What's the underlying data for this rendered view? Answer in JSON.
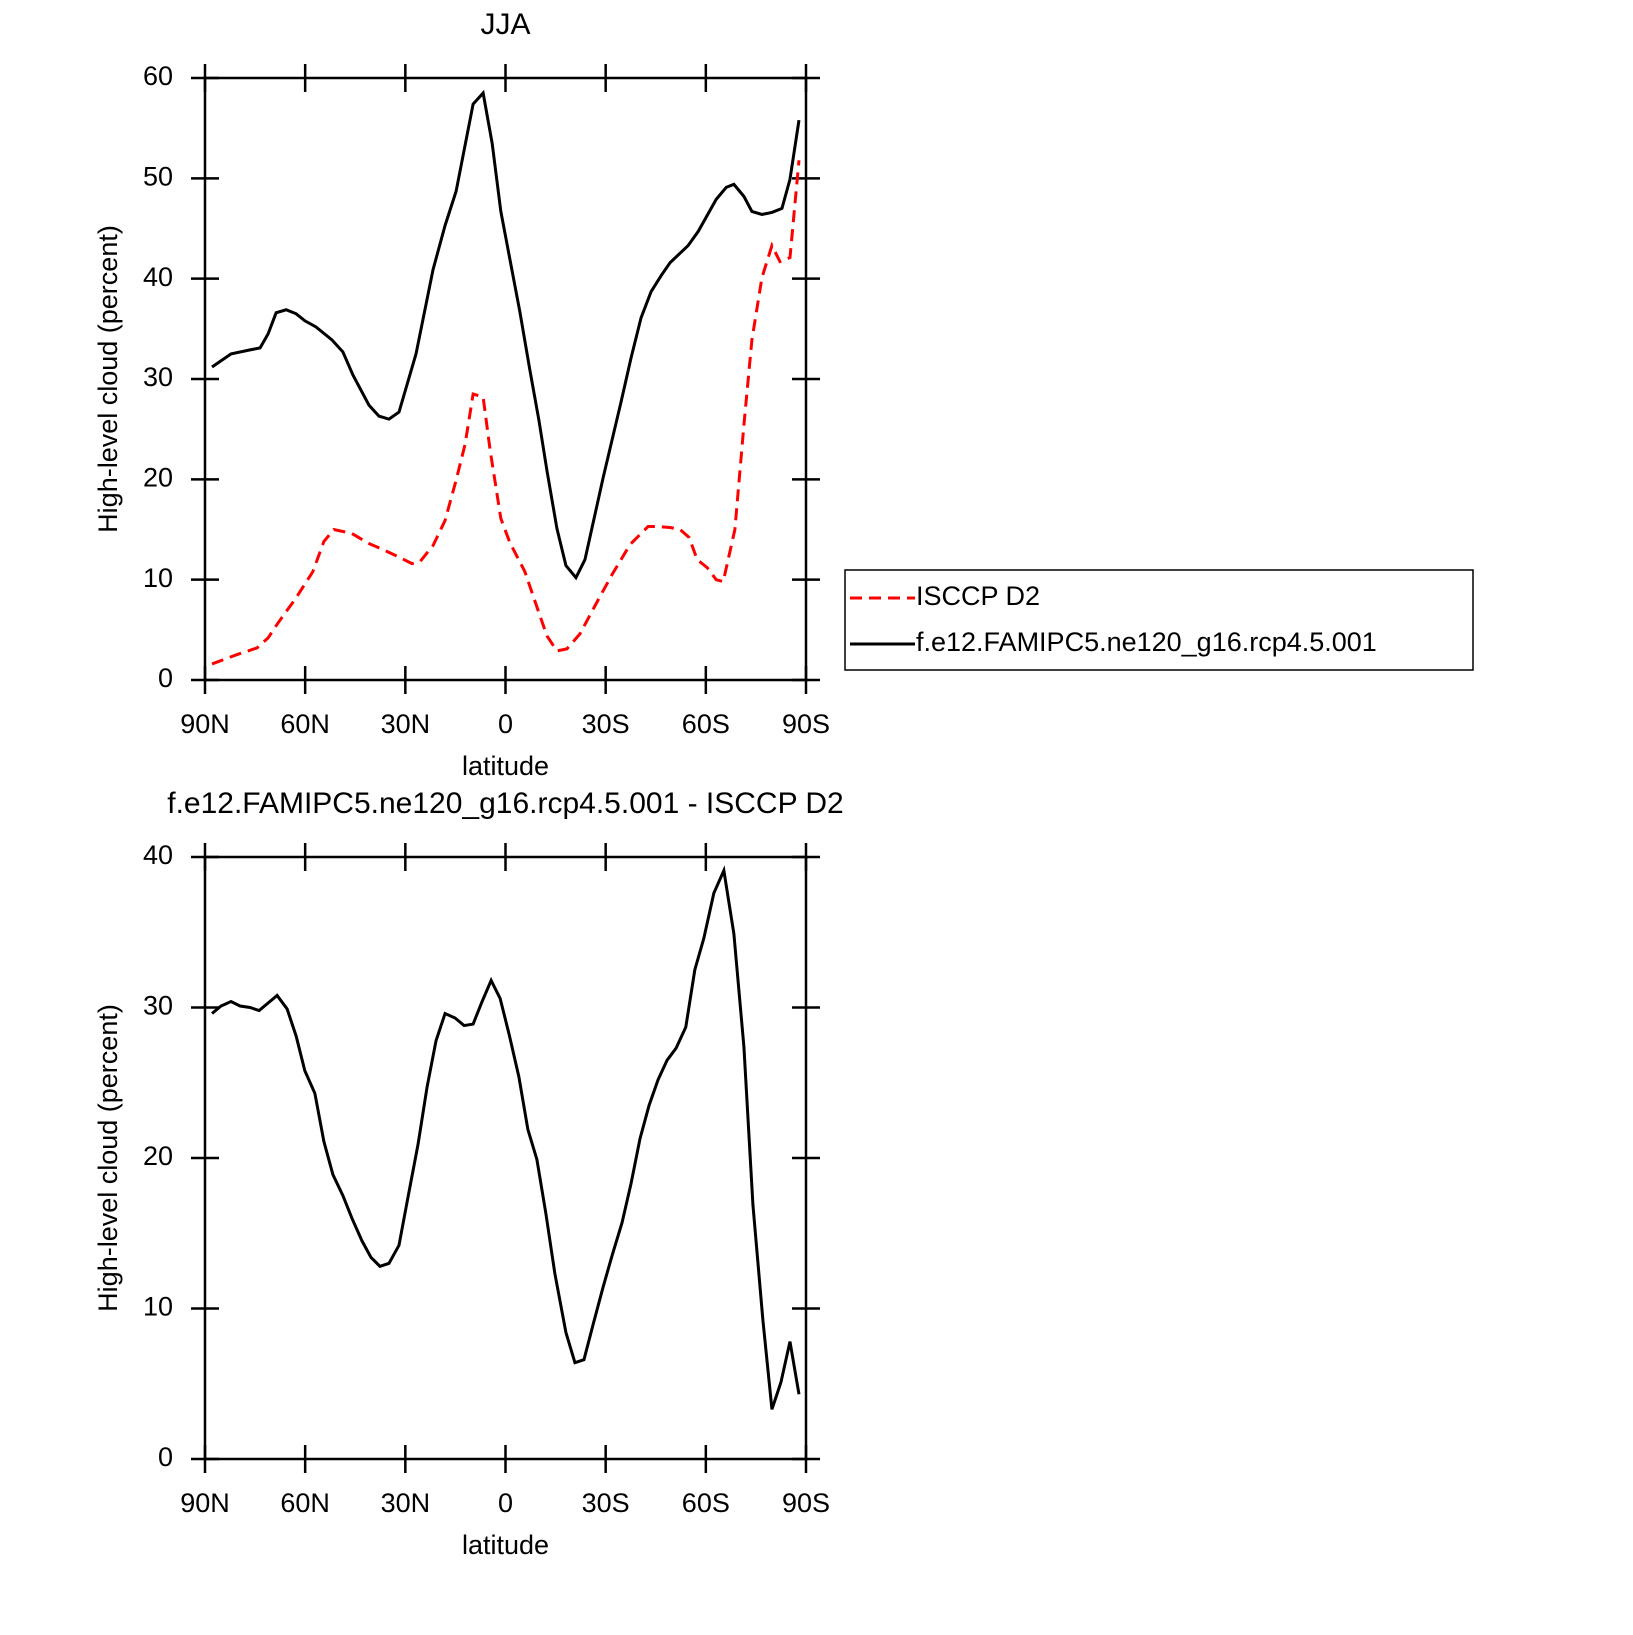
{
  "chart_data": [
    {
      "type": "line",
      "title": "JJA",
      "xlabel": "latitude",
      "ylabel": "High-level cloud (percent)",
      "xlim": [
        90,
        -90
      ],
      "xticks": [
        {
          "value": 90,
          "label": "90N"
        },
        {
          "value": 60,
          "label": "60N"
        },
        {
          "value": 30,
          "label": "30N"
        },
        0,
        {
          "value": -30,
          "label": "30S"
        },
        {
          "value": -60,
          "label": "60S"
        },
        {
          "value": -90,
          "label": "90S"
        }
      ],
      "ylim": [
        0,
        60
      ],
      "yticks": [
        0,
        10,
        20,
        30,
        40,
        50,
        60
      ],
      "legend": "right",
      "series": [
        {
          "name": "ISCCP D2",
          "color": "#ff0000",
          "dashed": true,
          "x": [
            87.9,
            85.5,
            80.7,
            74.4,
            71.1,
            68.1,
            62.7,
            57.7,
            54.4,
            51.4,
            46,
            40.9,
            36.7,
            32.2,
            28,
            25.6,
            21.7,
            18.1,
            14.8,
            12.1,
            9.7,
            6.7,
            4.6,
            1.4,
            -1.3,
            -5.8,
            -9.7,
            -12.4,
            -15.4,
            -18.4,
            -22.3,
            -26.8,
            -31.9,
            -37.3,
            -42.7,
            -45.4,
            -49.3,
            -52.3,
            -55,
            -57.4,
            -60.4,
            -63.1,
            -65.2,
            -68.7,
            -71.4,
            -73.8,
            -76.8,
            -79.8,
            -82.2,
            -85.2,
            -87.9
          ],
          "values": [
            1.6,
            1.9,
            2.5,
            3.2,
            4.2,
            5.7,
            8.2,
            10.8,
            13.8,
            15.0,
            14.6,
            13.6,
            13.0,
            12.3,
            11.6,
            11.8,
            13.4,
            15.9,
            19.9,
            23.5,
            28.5,
            28.2,
            22.9,
            16.1,
            13.7,
            10.8,
            7.0,
            4.4,
            2.9,
            3.1,
            4.6,
            7.4,
            10.5,
            13.5,
            15.3,
            15.3,
            15.2,
            15.0,
            14.2,
            12.0,
            11.2,
            10.0,
            9.8,
            15.0,
            25.4,
            33.9,
            40.1,
            43.3,
            41.7,
            42.1,
            51.8
          ]
        },
        {
          "name": "f.e12.FAMIPC5.ne120_g16.rcp4.5.001",
          "color": "#000000",
          "dashed": false,
          "x": [
            87.9,
            82.2,
            76.5,
            73.5,
            71.1,
            68.7,
            65.7,
            62.7,
            60.1,
            56.8,
            52,
            48.7,
            45.7,
            40.9,
            37.9,
            34.9,
            31.9,
            26.8,
            21.7,
            18.1,
            14.8,
            9.7,
            6.7,
            4.0,
            1.4,
            -4.3,
            -7.3,
            -10,
            -12.4,
            -15.4,
            -18.1,
            -21.1,
            -23.8,
            -29.2,
            -34.6,
            -37.6,
            -40.6,
            -43.6,
            -46.6,
            -49.3,
            -54.7,
            -57.7,
            -63.1,
            -66.1,
            -68.4,
            -71.4,
            -73.8,
            -76.8,
            -79.8,
            -82.8,
            -85.2,
            -87.9
          ],
          "values": [
            31.2,
            32.5,
            32.9,
            33.1,
            34.5,
            36.6,
            36.9,
            36.5,
            35.8,
            35.2,
            33.9,
            32.7,
            30.4,
            27.4,
            26.3,
            26.0,
            26.7,
            32.5,
            40.9,
            45.3,
            48.7,
            57.4,
            58.5,
            53.5,
            46.7,
            36.7,
            30.9,
            25.9,
            20.9,
            15.1,
            11.4,
            10.2,
            12.0,
            20.1,
            27.7,
            32.1,
            36.1,
            38.7,
            40.3,
            41.6,
            43.3,
            44.7,
            47.9,
            49.1,
            49.4,
            48.2,
            46.7,
            46.4,
            46.6,
            47.0,
            49.9,
            55.8
          ]
        }
      ]
    },
    {
      "type": "line",
      "title": "f.e12.FAMIPC5.ne120_g16.rcp4.5.001 - ISCCP D2",
      "xlabel": "latitude",
      "ylabel": "High-level cloud (percent)",
      "xlim": [
        90,
        -90
      ],
      "xticks": [
        {
          "value": 90,
          "label": "90N"
        },
        {
          "value": 60,
          "label": "60N"
        },
        {
          "value": 30,
          "label": "30N"
        },
        0,
        {
          "value": -30,
          "label": "30S"
        },
        {
          "value": -60,
          "label": "60S"
        },
        {
          "value": -90,
          "label": "90S"
        }
      ],
      "ylim": [
        0,
        40
      ],
      "yticks": [
        0,
        10,
        20,
        30,
        40
      ],
      "series": [
        {
          "color": "#000000",
          "dashed": false,
          "x": [
            87.9,
            85.2,
            82.2,
            79.5,
            76.5,
            73.8,
            71.1,
            68.4,
            65.4,
            62.7,
            60.1,
            57.1,
            54.4,
            51.7,
            48.7,
            46,
            43,
            40.3,
            37.6,
            34.9,
            31.9,
            29.2,
            26.2,
            23.5,
            20.8,
            18.1,
            15.1,
            12.4,
            9.7,
            7.0,
            4.3,
            1.6,
            -1.1,
            -4.0,
            -6.7,
            -9.4,
            -12.1,
            -14.8,
            -18.1,
            -20.8,
            -23.5,
            -26.2,
            -29.2,
            -31.9,
            -34.9,
            -37.6,
            -40.3,
            -43,
            -45.7,
            -48.4,
            -51.1,
            -54,
            -56.7,
            -59.4,
            -62.4,
            -65.4,
            -68.4,
            -71.4,
            -74.1,
            -77.1,
            -79.8,
            -82.5,
            -85.2,
            -87.9
          ],
          "values": [
            29.6,
            30.1,
            30.4,
            30.1,
            30.0,
            29.8,
            30.3,
            30.8,
            29.9,
            28.1,
            25.8,
            24.3,
            21.1,
            18.9,
            17.5,
            16.0,
            14.5,
            13.4,
            12.8,
            13.0,
            14.2,
            17.4,
            20.9,
            24.7,
            27.8,
            29.6,
            29.3,
            28.8,
            28.9,
            30.4,
            31.8,
            30.6,
            28.2,
            25.4,
            21.9,
            19.9,
            16.3,
            12.3,
            8.4,
            6.4,
            6.6,
            8.9,
            11.4,
            13.5,
            15.7,
            18.3,
            21.3,
            23.5,
            25.2,
            26.5,
            27.3,
            28.7,
            32.5,
            34.6,
            37.6,
            39.1,
            34.9,
            27.4,
            16.9,
            9.2,
            3.3,
            5.1,
            7.8,
            4.3
          ]
        }
      ]
    }
  ]
}
